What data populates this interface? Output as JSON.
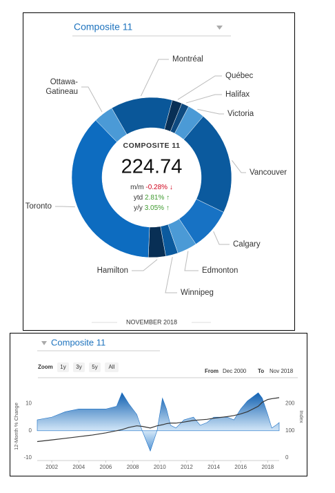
{
  "donut_panel": {
    "dropdown": "Composite 11",
    "center_title": "COMPOSITE 11",
    "center_value": 224.74,
    "stats": [
      {
        "label": "m/m",
        "value": "-0.28%",
        "arrow": "↓",
        "color": "#d0021b"
      },
      {
        "label": "ytd",
        "value": "2.81%",
        "arrow": "↑",
        "color": "#3f9a2f"
      },
      {
        "label": "y/y",
        "value": "3.05%",
        "arrow": "↑",
        "color": "#3f9a2f"
      }
    ],
    "footer": "NOVEMBER 2018"
  },
  "history_panel": {
    "dropdown": "Composite 11",
    "zoom_label": "Zoom",
    "zoom_buttons": [
      "1y",
      "3y",
      "5y",
      "All"
    ],
    "from_label": "From",
    "from_value": "Dec 2000",
    "to_label": "To",
    "to_value": "Nov 2018"
  },
  "chart_data": [
    {
      "type": "pie",
      "categories": [
        "Montréal",
        "Québec",
        "Halifax",
        "Victoria",
        "Vancouver",
        "Calgary",
        "Edmonton",
        "Winnipeg",
        "Hamilton",
        "Toronto",
        "Ottawa-Gatineau"
      ],
      "values": [
        12.5,
        2,
        1.5,
        3.5,
        21,
        8.5,
        4,
        2.5,
        3.5,
        37,
        4
      ],
      "colors": [
        "#0a5799",
        "#082f55",
        "#0e4a80",
        "#4b9ad6",
        "#0b5a9e",
        "#1772c4",
        "#4b9ad6",
        "#0b5a9e",
        "#082f55",
        "#0d6cc0",
        "#4b9ad6"
      ]
    },
    {
      "type": "area",
      "ylabel": "12-Month % Change",
      "y2label": "Index",
      "x": [
        2000.92,
        2002,
        2003,
        2004,
        2005,
        2006,
        2006.8,
        2007.2,
        2007.7,
        2008.3,
        2008.7,
        2009.3,
        2009.8,
        2010.2,
        2010.5,
        2010.8,
        2011.2,
        2011.8,
        2012.5,
        2013,
        2013.5,
        2014,
        2015,
        2015.5,
        2016,
        2016.5,
        2017.3,
        2017.6,
        2018,
        2018.3,
        2018.6,
        2018.85
      ],
      "xlim": [
        2000.92,
        2018.85
      ],
      "xticks": [
        2002,
        2004,
        2006,
        2008,
        2010,
        2012,
        2014,
        2016,
        2018
      ],
      "ylim": [
        -11,
        14.2
      ],
      "yticks": [
        -10,
        0,
        10
      ],
      "y2lim": [
        -10,
        242
      ],
      "y2ticks": [
        0,
        100,
        200
      ],
      "series": [
        {
          "type": "area",
          "color": "#1a6fc4",
          "values": [
            4,
            5,
            7,
            8,
            8,
            8,
            9,
            14,
            10,
            6,
            0,
            -7.5,
            0,
            12,
            8,
            2,
            1,
            4,
            5,
            2,
            3,
            5,
            5,
            4,
            8,
            11,
            14,
            12,
            6,
            1,
            2,
            3
          ]
        },
        {
          "type": "line",
          "axis": "y2",
          "color": "#333333",
          "values": [
            60,
            66,
            72,
            78,
            84,
            92,
            100,
            104,
            112,
            118,
            116,
            110,
            118,
            122,
            126,
            128,
            128,
            132,
            138,
            140,
            142,
            146,
            152,
            156,
            162,
            170,
            190,
            205,
            215,
            218,
            220,
            222
          ]
        }
      ]
    }
  ]
}
